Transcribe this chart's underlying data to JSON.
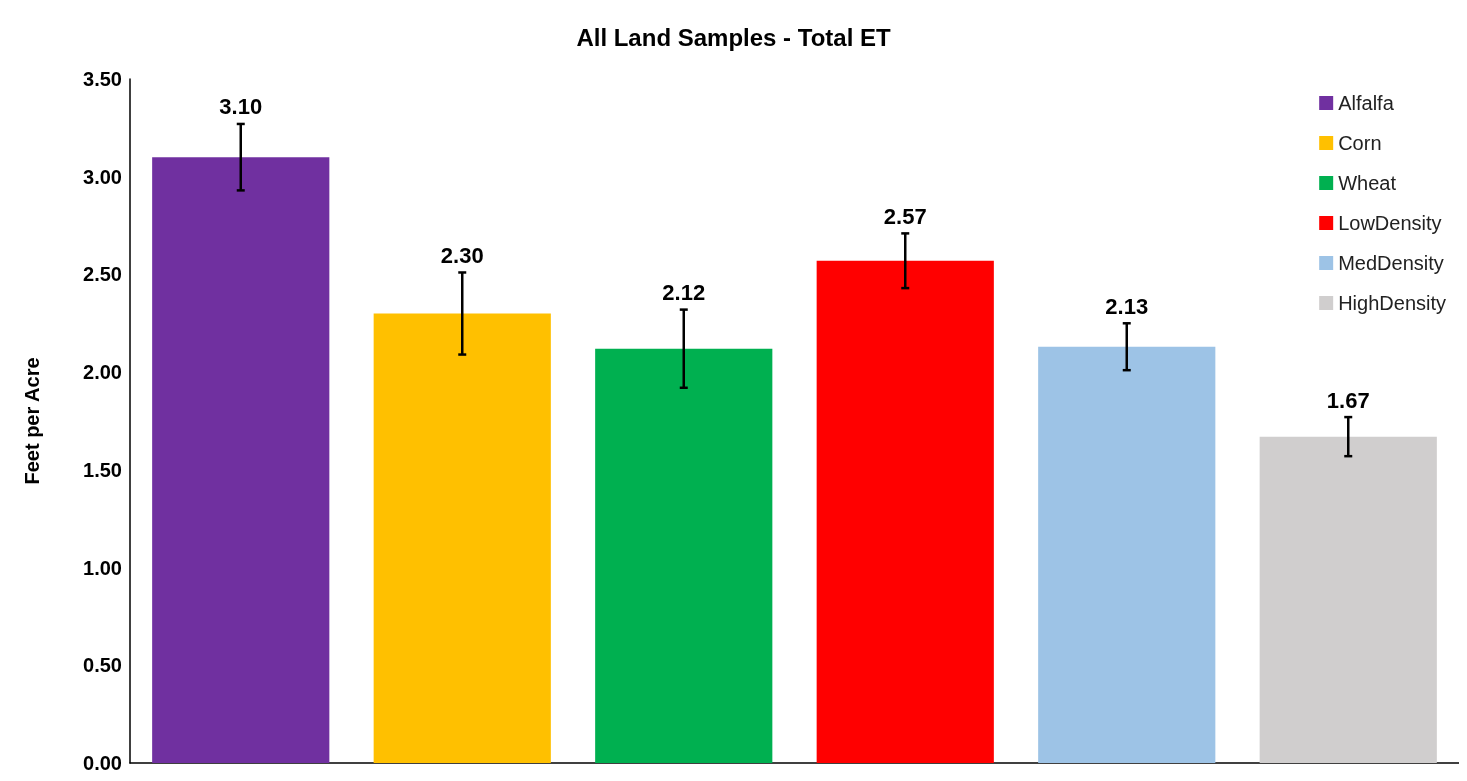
{
  "chart_data": {
    "type": "bar",
    "title": "All Land Samples - Total ET",
    "ylabel": "Feet per Acre",
    "categories": [
      null,
      null,
      null,
      null,
      null,
      null
    ],
    "series": [
      {
        "name": "Alfalfa",
        "color": "#7030a0",
        "values": [
          3.1,
          null,
          null,
          null,
          null,
          null
        ],
        "value_labels": [
          "3.10",
          null,
          null,
          null,
          null,
          null
        ],
        "errors": [
          0.17,
          null,
          null,
          null,
          null,
          null
        ]
      },
      {
        "name": "Corn",
        "color": "#ffc000",
        "values": [
          null,
          2.3,
          null,
          null,
          null,
          null
        ],
        "value_labels": [
          null,
          "2.30",
          null,
          null,
          null,
          null
        ],
        "errors": [
          null,
          0.21,
          null,
          null,
          null,
          null
        ]
      },
      {
        "name": "Wheat",
        "color": "#00b050",
        "values": [
          null,
          null,
          2.12,
          null,
          null,
          null
        ],
        "value_labels": [
          null,
          null,
          "2.12",
          null,
          null,
          null
        ],
        "errors": [
          null,
          null,
          0.2,
          null,
          null,
          null
        ]
      },
      {
        "name": "LowDensity",
        "color": "#ff0000",
        "values": [
          null,
          null,
          null,
          2.57,
          null,
          null
        ],
        "value_labels": [
          null,
          null,
          null,
          "2.57",
          null,
          null
        ],
        "errors": [
          null,
          null,
          null,
          0.14,
          null,
          null
        ]
      },
      {
        "name": "MedDensity",
        "color": "#9dc3e6",
        "values": [
          null,
          null,
          null,
          null,
          2.13,
          null
        ],
        "value_labels": [
          null,
          null,
          null,
          null,
          "2.13",
          null
        ],
        "errors": [
          null,
          null,
          null,
          null,
          0.12,
          null
        ]
      },
      {
        "name": "HighDensity",
        "color": "#d0cece",
        "values": [
          null,
          null,
          null,
          null,
          null,
          1.67
        ],
        "value_labels": [
          null,
          null,
          null,
          null,
          null,
          "1.67"
        ],
        "errors": [
          null,
          null,
          null,
          null,
          null,
          0.1
        ]
      }
    ],
    "ylim": [
      0,
      3.5
    ],
    "yticks": [
      {
        "value": 0,
        "label": "0.00"
      },
      {
        "value": 0.5,
        "label": "0.50"
      },
      {
        "value": 1,
        "label": "1.00"
      },
      {
        "value": 1.5,
        "label": "1.50"
      },
      {
        "value": 2,
        "label": "2.00"
      },
      {
        "value": 2.5,
        "label": "2.50"
      },
      {
        "value": 3,
        "label": "3.00"
      },
      {
        "value": 3.5,
        "label": "3.50"
      }
    ],
    "grid": false,
    "legend": "top right"
  }
}
